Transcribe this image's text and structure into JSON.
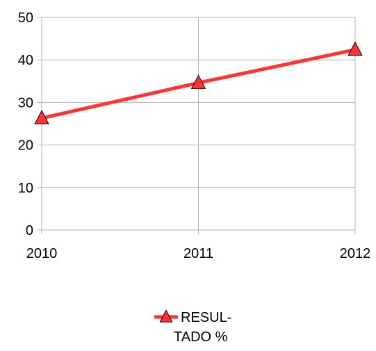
{
  "chart_data": {
    "type": "line",
    "categories": [
      "2010",
      "2011",
      "2012"
    ],
    "series": [
      {
        "name": "RESUL-TADO %",
        "legend_lines": [
          "RESUL-",
          "TADO %"
        ],
        "values": [
          26.3,
          34.6,
          42.4
        ],
        "color": "#ff3333",
        "marker": "triangle"
      }
    ],
    "y_ticks": [
      "0",
      "10",
      "20",
      "30",
      "40",
      "50"
    ],
    "ylim": [
      0,
      50
    ],
    "grid": "horizontal",
    "legend_position": "bottom",
    "colors": {
      "axis": "#b3b3b3",
      "grid": "#b3b3b3",
      "marker_fill": "#ff3333",
      "marker_stroke": "#000000"
    }
  }
}
